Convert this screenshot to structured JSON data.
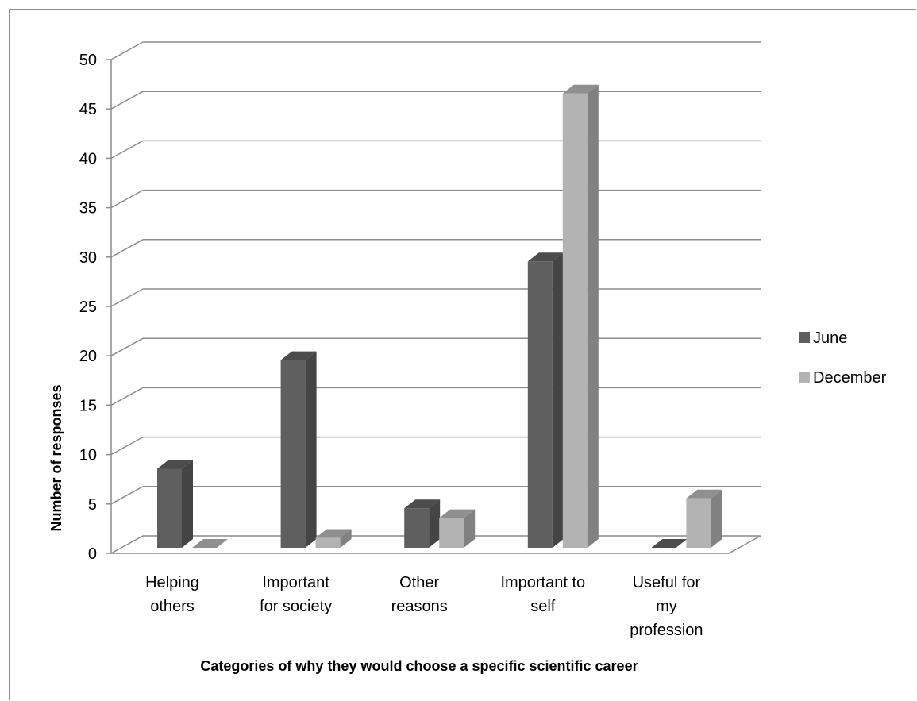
{
  "chart_data": {
    "type": "bar",
    "style": "3d-clustered-column",
    "categories": [
      [
        "Helping",
        "others"
      ],
      [
        "Important",
        "for society"
      ],
      [
        "Other",
        "reasons"
      ],
      [
        "Important to",
        "self"
      ],
      [
        "Useful for",
        "my",
        "profession"
      ]
    ],
    "series": [
      {
        "name": "June",
        "values": [
          8,
          19,
          4,
          29,
          0
        ],
        "color": "#5f5f5f"
      },
      {
        "name": "December",
        "values": [
          0,
          1,
          3,
          46,
          5
        ],
        "color": "#b3b3b3"
      }
    ],
    "xlabel": "Categories of why they would choose a specific scientific career",
    "ylabel": "Number of responses",
    "ylim": [
      0,
      50
    ],
    "yticks": [
      0,
      5,
      10,
      15,
      20,
      25,
      30,
      35,
      40,
      45,
      50
    ],
    "grid": true,
    "legend_position": "right"
  }
}
